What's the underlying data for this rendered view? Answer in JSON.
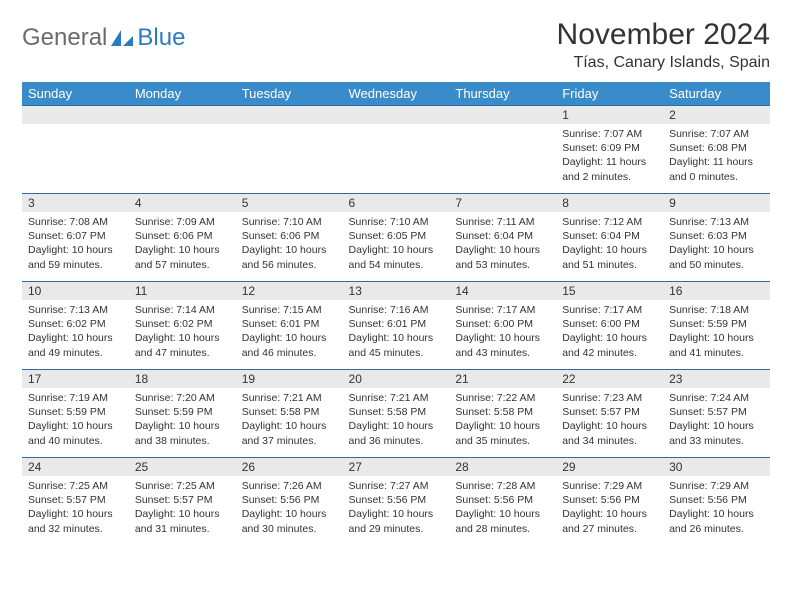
{
  "logo": {
    "word1": "General",
    "word2": "Blue"
  },
  "header": {
    "month_title": "November 2024",
    "location": "Tías, Canary Islands, Spain"
  },
  "colors": {
    "header_bg": "#3a8bc9",
    "header_text": "#ffffff",
    "daynum_bg": "#e9e9e9",
    "row_border": "#2b6ca3",
    "logo_gray": "#6b6b6b",
    "logo_blue": "#2b7bbf"
  },
  "typography": {
    "month_title_size": 30,
    "location_size": 16,
    "dayhead_size": 13,
    "daynum_size": 12,
    "body_size": 10.5
  },
  "day_headers": [
    "Sunday",
    "Monday",
    "Tuesday",
    "Wednesday",
    "Thursday",
    "Friday",
    "Saturday"
  ],
  "weeks": [
    [
      null,
      null,
      null,
      null,
      null,
      {
        "n": "1",
        "sr": "Sunrise: 7:07 AM",
        "ss": "Sunset: 6:09 PM",
        "dl": "Daylight: 11 hours and 2 minutes."
      },
      {
        "n": "2",
        "sr": "Sunrise: 7:07 AM",
        "ss": "Sunset: 6:08 PM",
        "dl": "Daylight: 11 hours and 0 minutes."
      }
    ],
    [
      {
        "n": "3",
        "sr": "Sunrise: 7:08 AM",
        "ss": "Sunset: 6:07 PM",
        "dl": "Daylight: 10 hours and 59 minutes."
      },
      {
        "n": "4",
        "sr": "Sunrise: 7:09 AM",
        "ss": "Sunset: 6:06 PM",
        "dl": "Daylight: 10 hours and 57 minutes."
      },
      {
        "n": "5",
        "sr": "Sunrise: 7:10 AM",
        "ss": "Sunset: 6:06 PM",
        "dl": "Daylight: 10 hours and 56 minutes."
      },
      {
        "n": "6",
        "sr": "Sunrise: 7:10 AM",
        "ss": "Sunset: 6:05 PM",
        "dl": "Daylight: 10 hours and 54 minutes."
      },
      {
        "n": "7",
        "sr": "Sunrise: 7:11 AM",
        "ss": "Sunset: 6:04 PM",
        "dl": "Daylight: 10 hours and 53 minutes."
      },
      {
        "n": "8",
        "sr": "Sunrise: 7:12 AM",
        "ss": "Sunset: 6:04 PM",
        "dl": "Daylight: 10 hours and 51 minutes."
      },
      {
        "n": "9",
        "sr": "Sunrise: 7:13 AM",
        "ss": "Sunset: 6:03 PM",
        "dl": "Daylight: 10 hours and 50 minutes."
      }
    ],
    [
      {
        "n": "10",
        "sr": "Sunrise: 7:13 AM",
        "ss": "Sunset: 6:02 PM",
        "dl": "Daylight: 10 hours and 49 minutes."
      },
      {
        "n": "11",
        "sr": "Sunrise: 7:14 AM",
        "ss": "Sunset: 6:02 PM",
        "dl": "Daylight: 10 hours and 47 minutes."
      },
      {
        "n": "12",
        "sr": "Sunrise: 7:15 AM",
        "ss": "Sunset: 6:01 PM",
        "dl": "Daylight: 10 hours and 46 minutes."
      },
      {
        "n": "13",
        "sr": "Sunrise: 7:16 AM",
        "ss": "Sunset: 6:01 PM",
        "dl": "Daylight: 10 hours and 45 minutes."
      },
      {
        "n": "14",
        "sr": "Sunrise: 7:17 AM",
        "ss": "Sunset: 6:00 PM",
        "dl": "Daylight: 10 hours and 43 minutes."
      },
      {
        "n": "15",
        "sr": "Sunrise: 7:17 AM",
        "ss": "Sunset: 6:00 PM",
        "dl": "Daylight: 10 hours and 42 minutes."
      },
      {
        "n": "16",
        "sr": "Sunrise: 7:18 AM",
        "ss": "Sunset: 5:59 PM",
        "dl": "Daylight: 10 hours and 41 minutes."
      }
    ],
    [
      {
        "n": "17",
        "sr": "Sunrise: 7:19 AM",
        "ss": "Sunset: 5:59 PM",
        "dl": "Daylight: 10 hours and 40 minutes."
      },
      {
        "n": "18",
        "sr": "Sunrise: 7:20 AM",
        "ss": "Sunset: 5:59 PM",
        "dl": "Daylight: 10 hours and 38 minutes."
      },
      {
        "n": "19",
        "sr": "Sunrise: 7:21 AM",
        "ss": "Sunset: 5:58 PM",
        "dl": "Daylight: 10 hours and 37 minutes."
      },
      {
        "n": "20",
        "sr": "Sunrise: 7:21 AM",
        "ss": "Sunset: 5:58 PM",
        "dl": "Daylight: 10 hours and 36 minutes."
      },
      {
        "n": "21",
        "sr": "Sunrise: 7:22 AM",
        "ss": "Sunset: 5:58 PM",
        "dl": "Daylight: 10 hours and 35 minutes."
      },
      {
        "n": "22",
        "sr": "Sunrise: 7:23 AM",
        "ss": "Sunset: 5:57 PM",
        "dl": "Daylight: 10 hours and 34 minutes."
      },
      {
        "n": "23",
        "sr": "Sunrise: 7:24 AM",
        "ss": "Sunset: 5:57 PM",
        "dl": "Daylight: 10 hours and 33 minutes."
      }
    ],
    [
      {
        "n": "24",
        "sr": "Sunrise: 7:25 AM",
        "ss": "Sunset: 5:57 PM",
        "dl": "Daylight: 10 hours and 32 minutes."
      },
      {
        "n": "25",
        "sr": "Sunrise: 7:25 AM",
        "ss": "Sunset: 5:57 PM",
        "dl": "Daylight: 10 hours and 31 minutes."
      },
      {
        "n": "26",
        "sr": "Sunrise: 7:26 AM",
        "ss": "Sunset: 5:56 PM",
        "dl": "Daylight: 10 hours and 30 minutes."
      },
      {
        "n": "27",
        "sr": "Sunrise: 7:27 AM",
        "ss": "Sunset: 5:56 PM",
        "dl": "Daylight: 10 hours and 29 minutes."
      },
      {
        "n": "28",
        "sr": "Sunrise: 7:28 AM",
        "ss": "Sunset: 5:56 PM",
        "dl": "Daylight: 10 hours and 28 minutes."
      },
      {
        "n": "29",
        "sr": "Sunrise: 7:29 AM",
        "ss": "Sunset: 5:56 PM",
        "dl": "Daylight: 10 hours and 27 minutes."
      },
      {
        "n": "30",
        "sr": "Sunrise: 7:29 AM",
        "ss": "Sunset: 5:56 PM",
        "dl": "Daylight: 10 hours and 26 minutes."
      }
    ]
  ]
}
